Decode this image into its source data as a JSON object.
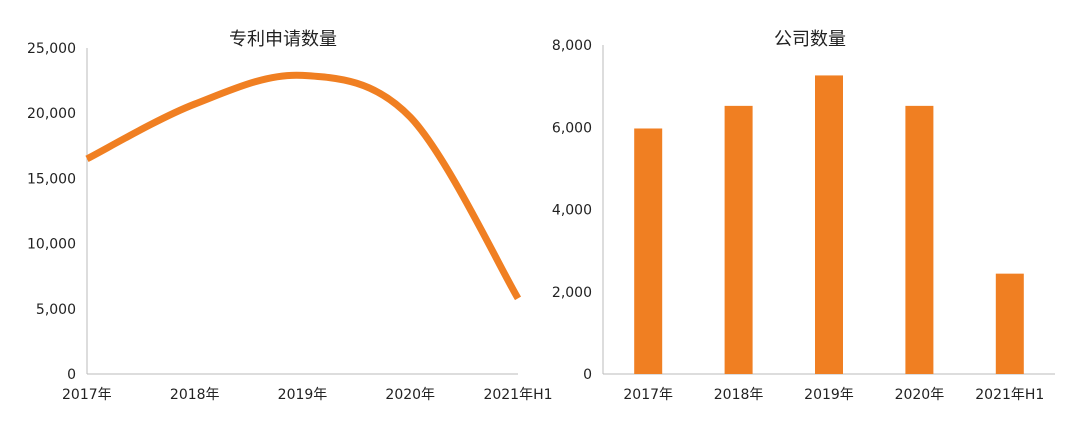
{
  "colors": {
    "series": "#F07F22",
    "axis": "#BBBBBB"
  },
  "chart_data": [
    {
      "type": "line",
      "title": "专利申请数量",
      "categories": [
        "2017年",
        "2018年",
        "2019年",
        "2020年",
        "2021年H1"
      ],
      "series": [
        {
          "values": [
            16500,
            20700,
            22900,
            19700,
            5800
          ]
        }
      ],
      "ylim": [
        0,
        25000
      ],
      "yticks": [
        "0",
        "5,000",
        "10,000",
        "15,000",
        "20,000",
        "25,000"
      ],
      "smooth": true,
      "grid": false
    },
    {
      "type": "bar",
      "title": "公司数量",
      "categories": [
        "2017年",
        "2018年",
        "2019年",
        "2020年",
        "2021年H1"
      ],
      "series": [
        {
          "values": [
            5970,
            6520,
            7260,
            6520,
            2440
          ]
        }
      ],
      "ylim": [
        0,
        8000
      ],
      "yticks": [
        "0",
        "2,000",
        "4,000",
        "6,000",
        "8,000"
      ],
      "grid": false
    }
  ]
}
